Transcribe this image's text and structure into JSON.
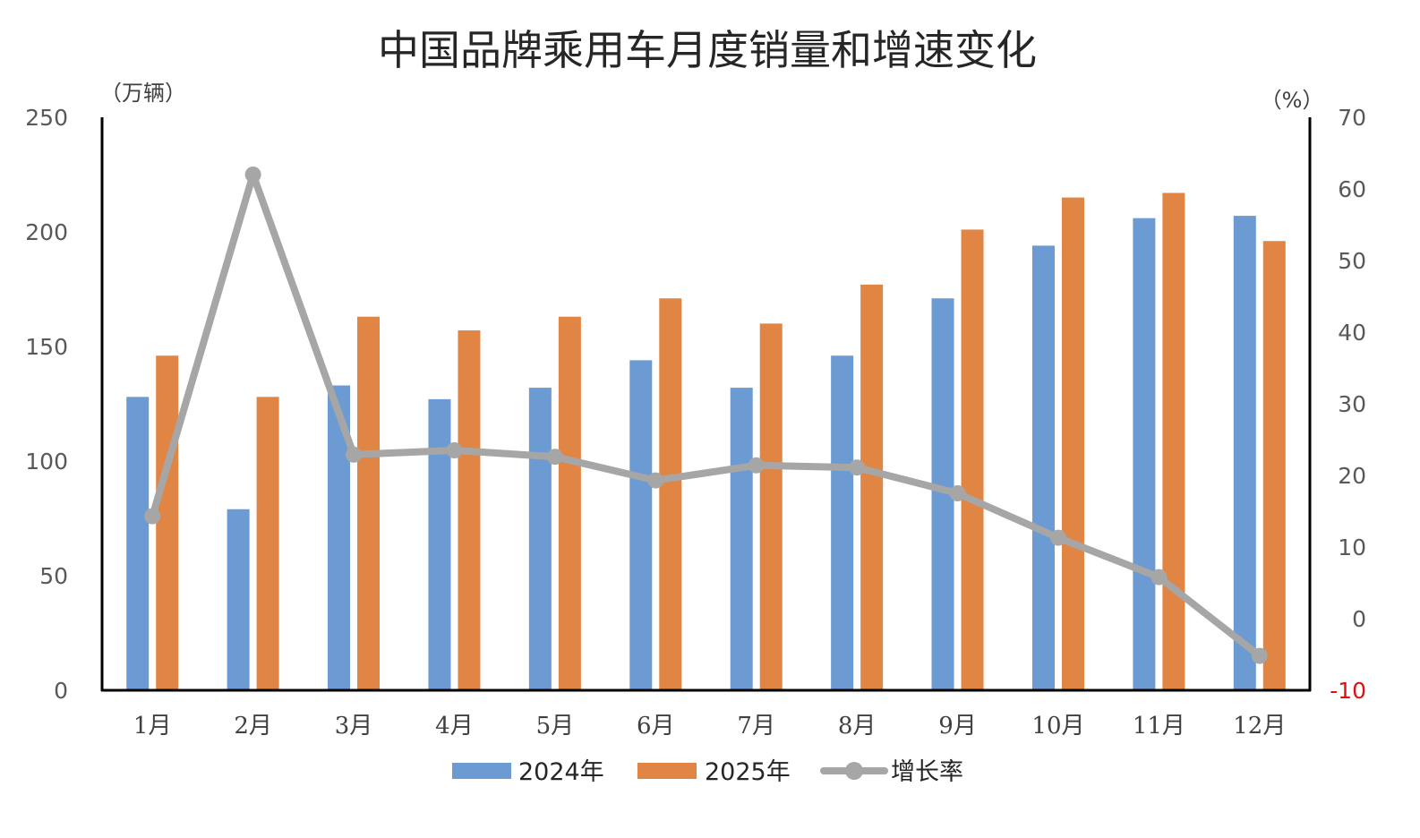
{
  "chart_data": {
    "type": "bar",
    "title": "中国品牌乘用车月度销量和增速变化",
    "left_axis_unit": "（万辆）",
    "right_axis_unit": "（%）",
    "categories": [
      "1月",
      "2月",
      "3月",
      "4月",
      "5月",
      "6月",
      "7月",
      "8月",
      "9月",
      "10月",
      "11月",
      "12月"
    ],
    "series": [
      {
        "name": "2024年",
        "kind": "bar",
        "axis": "left",
        "color": "#6b9bd2",
        "values": [
          128,
          79,
          133,
          127,
          132,
          144,
          132,
          146,
          171,
          194,
          206,
          207
        ]
      },
      {
        "name": "2025年",
        "kind": "bar",
        "axis": "left",
        "color": "#e08544",
        "values": [
          146,
          128,
          163,
          157,
          163,
          171,
          160,
          177,
          201,
          215,
          217,
          196
        ]
      },
      {
        "name": "增长率",
        "kind": "line",
        "axis": "right",
        "color": "#a6a6a6",
        "values": [
          14.3,
          62,
          22.9,
          23.5,
          22.6,
          19.3,
          21.4,
          21.1,
          17.5,
          11.3,
          5.8,
          -5.2
        ]
      }
    ],
    "left_axis": {
      "ylim": [
        0,
        250
      ],
      "ticks": [
        "0",
        "50",
        "100",
        "150",
        "200",
        "250"
      ]
    },
    "right_axis": {
      "ylim": [
        -10,
        70
      ],
      "ticks": [
        "-10",
        "0",
        "10",
        "20",
        "30",
        "40",
        "50",
        "60",
        "70"
      ],
      "negative_tick_color": "#e01010"
    },
    "grid": false,
    "legend_position": "bottom"
  }
}
